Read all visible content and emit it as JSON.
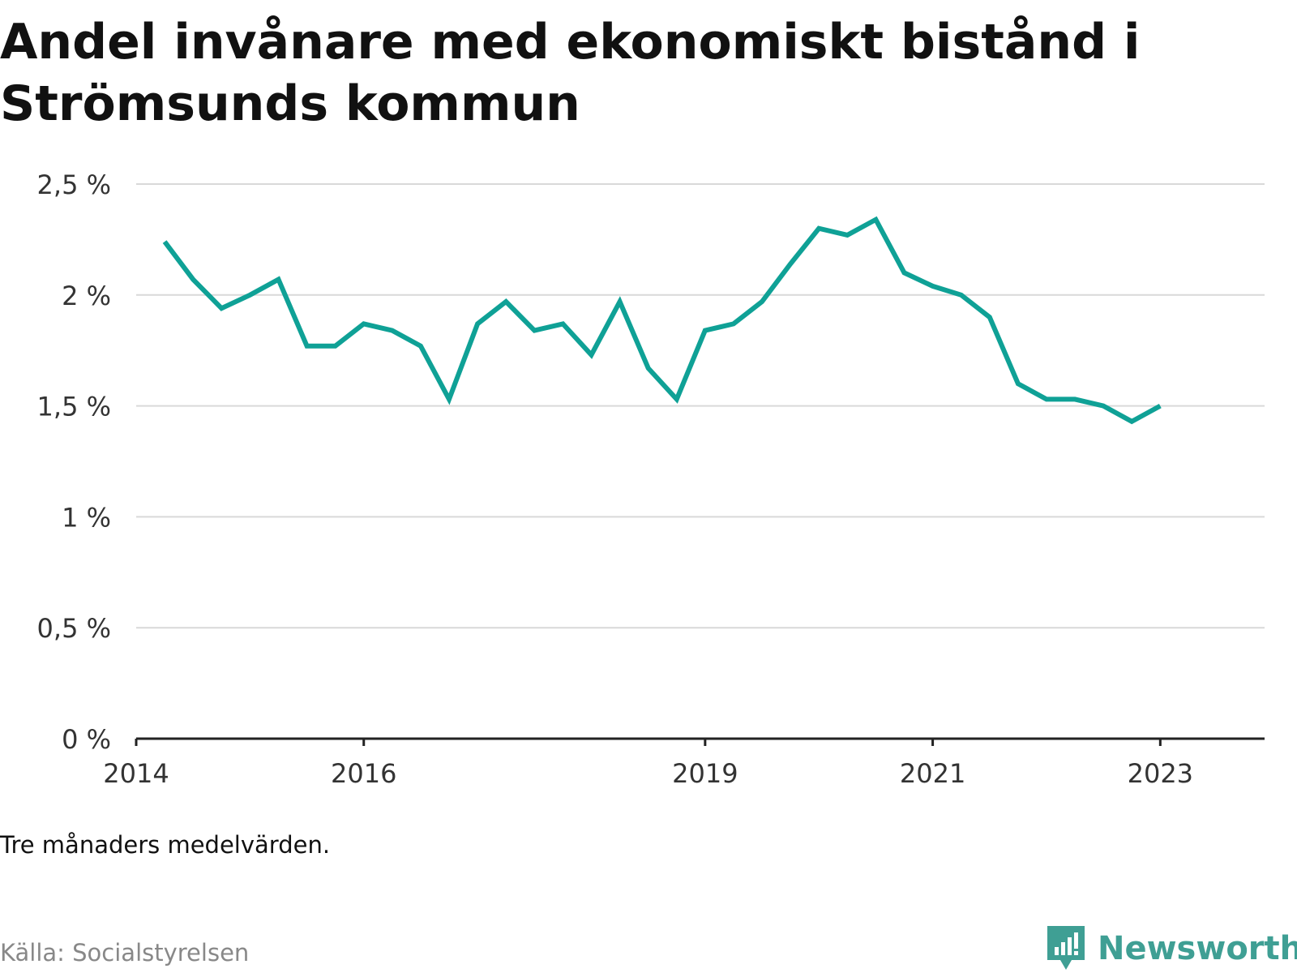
{
  "title": "Andel invånare med ekonomiskt bistånd i Strömsunds kommun",
  "note": "Tre månaders medelvärden.",
  "source": "Källa: Socialstyrelsen",
  "brand": {
    "name": "Newsworthy",
    "icon": "newsworthy-logo-icon",
    "color": "#3f9f94"
  },
  "colors": {
    "line": "#0fa196",
    "grid": "#d9d9d9",
    "axis": "#222222"
  },
  "chart_data": {
    "type": "line",
    "title": "Andel invånare med ekonomiskt bistånd i Strömsunds kommun",
    "xlabel": "",
    "ylabel": "",
    "ylim": [
      0,
      2.5
    ],
    "xlim": [
      "2014-01",
      "2023-12"
    ],
    "yticks": [
      {
        "value": 0,
        "label": "0 %"
      },
      {
        "value": 0.5,
        "label": "0,5 %"
      },
      {
        "value": 1,
        "label": "1 %"
      },
      {
        "value": 1.5,
        "label": "1,5 %"
      },
      {
        "value": 2,
        "label": "2 %"
      },
      {
        "value": 2.5,
        "label": "2,5 %"
      }
    ],
    "xticks": [
      {
        "value": "2014-01",
        "label": "2014"
      },
      {
        "value": "2016-01",
        "label": "2016"
      },
      {
        "value": "2019-01",
        "label": "2019"
      },
      {
        "value": "2021-01",
        "label": "2021"
      },
      {
        "value": "2023-01",
        "label": "2023"
      }
    ],
    "grid": true,
    "x": [
      "2014-04",
      "2014-07",
      "2014-10",
      "2015-01",
      "2015-04",
      "2015-07",
      "2015-10",
      "2016-01",
      "2016-04",
      "2016-07",
      "2016-10",
      "2017-01",
      "2017-04",
      "2017-07",
      "2017-10",
      "2018-01",
      "2018-04",
      "2018-07",
      "2018-10",
      "2019-01",
      "2019-04",
      "2019-07",
      "2019-10",
      "2020-01",
      "2020-04",
      "2020-07",
      "2020-10",
      "2021-01",
      "2021-04",
      "2021-07",
      "2021-10",
      "2022-01",
      "2022-04",
      "2022-07",
      "2022-10",
      "2023-01"
    ],
    "series": [
      {
        "values": [
          2.24,
          2.07,
          1.94,
          2.0,
          2.07,
          1.77,
          1.77,
          1.87,
          1.84,
          1.77,
          1.53,
          1.87,
          1.97,
          1.84,
          1.87,
          1.73,
          1.97,
          1.67,
          1.53,
          1.84,
          1.87,
          1.97,
          2.14,
          2.3,
          2.27,
          2.34,
          2.1,
          2.04,
          2.0,
          1.9,
          1.6,
          1.53,
          1.53,
          1.5,
          1.43,
          1.5
        ]
      }
    ]
  }
}
